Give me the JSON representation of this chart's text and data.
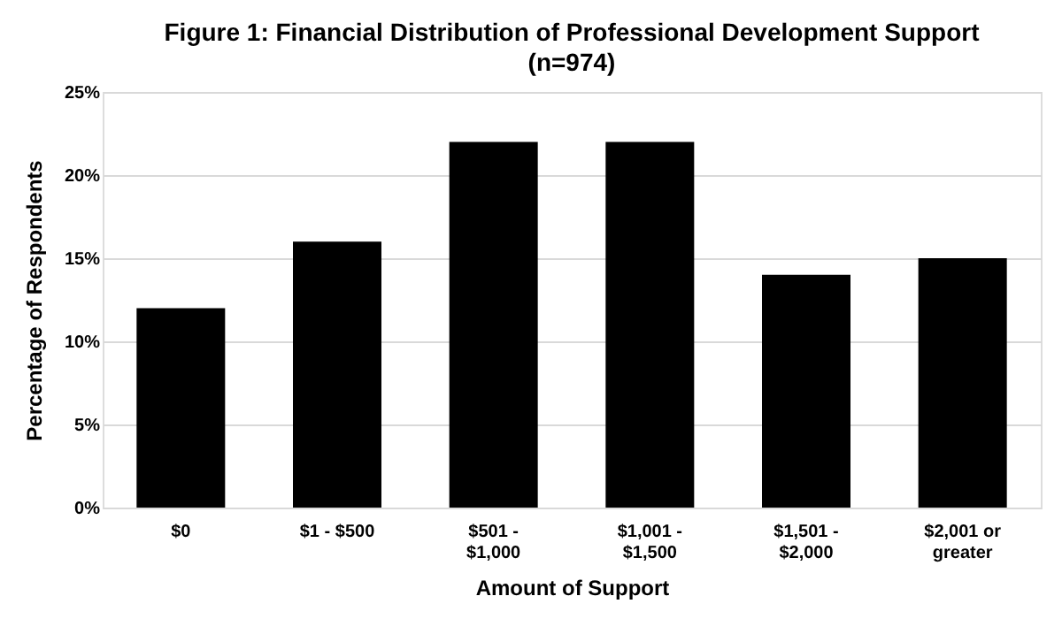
{
  "chart_data": {
    "type": "bar",
    "title": "Figure 1: Financial Distribution of Professional Development Support",
    "subtitle": "(n=974)",
    "xlabel": "Amount of Support",
    "ylabel": "Percentage of Respondents",
    "categories": [
      "$0",
      "$1 - $500",
      "$501 - $1,000",
      "$1,001 - $1,500",
      "$1,501 - $2,000",
      "$2,001 or greater"
    ],
    "values": [
      12,
      16,
      22,
      22,
      14,
      15
    ],
    "color": "#000000",
    "ylim": [
      0,
      25
    ],
    "yticks": [
      {
        "value": 0,
        "label": "0%"
      },
      {
        "value": 5,
        "label": "5%"
      },
      {
        "value": 10,
        "label": "10%"
      },
      {
        "value": 15,
        "label": "15%"
      },
      {
        "value": 20,
        "label": "20%"
      },
      {
        "value": 25,
        "label": "25%"
      }
    ],
    "grid": "y"
  }
}
